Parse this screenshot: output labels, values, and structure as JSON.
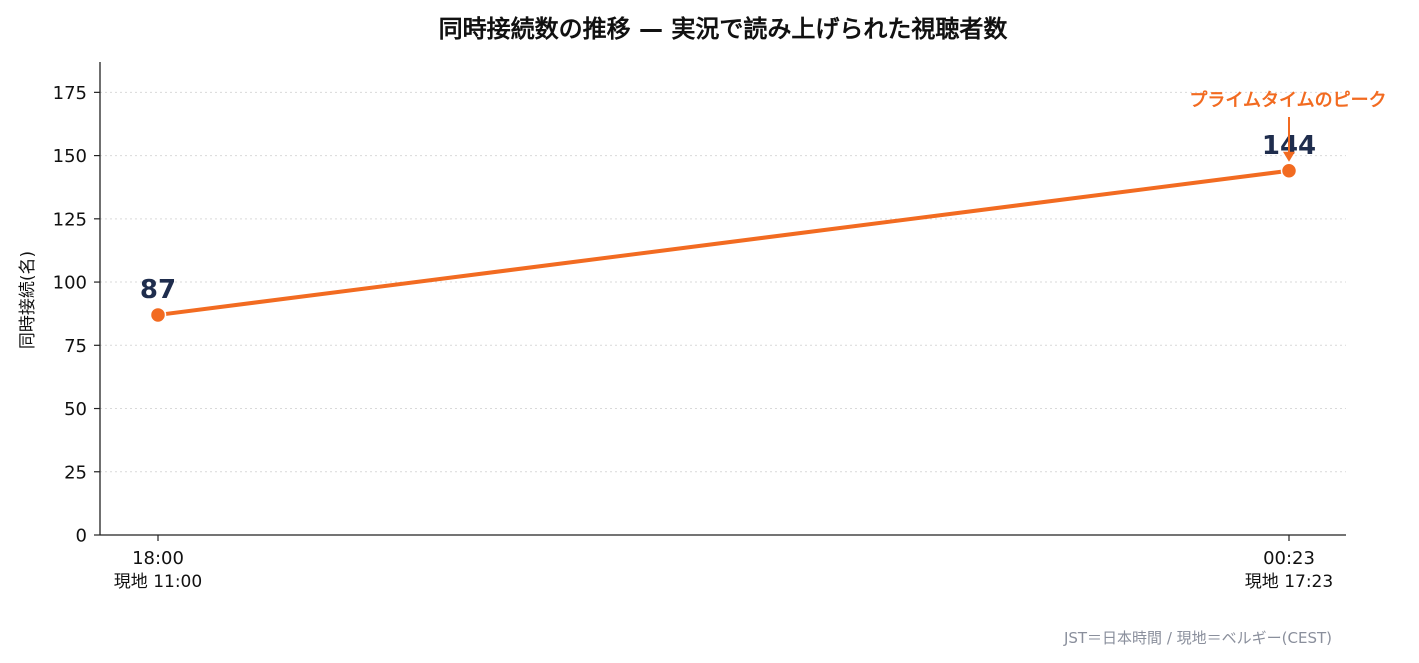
{
  "colors": {
    "series": "#f26b21",
    "data_label": "#1f2d4d",
    "axis": "#222222",
    "grid": "#d9d9d9",
    "footnote": "#8a8f9c"
  },
  "chart_data": {
    "type": "line",
    "title": "同時接続数の推移 — 実況で読み上げられた視聴者数",
    "xlabel": "",
    "ylabel": "同時接続(名)",
    "ylim": [
      0,
      187
    ],
    "yticks": [
      0,
      25,
      50,
      75,
      100,
      125,
      150,
      175
    ],
    "grid": "horizontal dotted",
    "categories": [
      {
        "jst": "18:00",
        "local": "現地 11:00"
      },
      {
        "jst": "00:23",
        "local": "現地 17:23"
      }
    ],
    "series": [
      {
        "values": [
          87,
          144
        ],
        "labels": [
          "87",
          "144"
        ]
      }
    ],
    "annotation": {
      "text": "プライムタイムのピーク",
      "point_index": 1
    },
    "footnote": "JST＝日本時間 / 現地＝ベルギー(CEST)"
  }
}
